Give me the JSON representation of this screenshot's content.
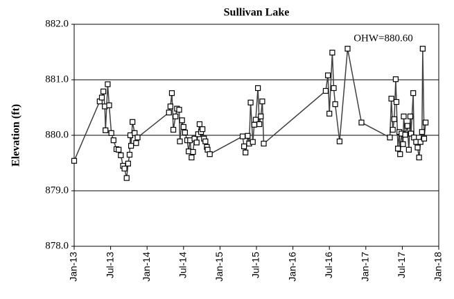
{
  "chart_data": {
    "type": "line",
    "title": "Sullivan Lake",
    "y_label": "Elevation (ft)",
    "annotation": "OHW=880.60",
    "color": "#404040",
    "grid": true,
    "marker": "square",
    "x": [
      2013.0,
      2013.35,
      2013.38,
      2013.4,
      2013.42,
      2013.43,
      2013.46,
      2013.48,
      2013.51,
      2013.54,
      2013.58,
      2013.61,
      2013.64,
      2013.67,
      2013.69,
      2013.72,
      2013.74,
      2013.76,
      2013.77,
      2013.78,
      2013.8,
      2013.83,
      2013.85,
      2013.87,
      2014.3,
      2014.32,
      2014.34,
      2014.36,
      2014.39,
      2014.41,
      2014.44,
      2014.45,
      2014.48,
      2014.5,
      2014.52,
      2014.55,
      2014.57,
      2014.59,
      2014.61,
      2014.63,
      2014.65,
      2014.68,
      2014.7,
      2014.72,
      2014.74,
      2014.76,
      2014.78,
      2014.8,
      2014.82,
      2014.83,
      2014.86,
      2015.31,
      2015.33,
      2015.35,
      2015.38,
      2015.4,
      2015.42,
      2015.45,
      2015.47,
      2015.49,
      2015.52,
      2015.54,
      2015.56,
      2015.58,
      2015.6,
      2016.45,
      2016.48,
      2016.5,
      2016.54,
      2016.56,
      2016.58,
      2016.64,
      2016.75,
      2016.94,
      2017.33,
      2017.35,
      2017.37,
      2017.39,
      2017.41,
      2017.42,
      2017.44,
      2017.46,
      2017.47,
      2017.49,
      2017.51,
      2017.52,
      2017.54,
      2017.57,
      2017.59,
      2017.61,
      2017.62,
      2017.65,
      2017.66,
      2017.69,
      2017.71,
      2017.73,
      2017.75,
      2017.77,
      2017.78,
      2017.8,
      2017.82
    ],
    "values": [
      879.54,
      880.61,
      880.68,
      880.79,
      880.52,
      880.09,
      880.92,
      880.54,
      880.04,
      879.91,
      879.75,
      879.74,
      879.64,
      879.45,
      879.4,
      879.23,
      879.49,
      879.65,
      880.0,
      879.81,
      880.24,
      880.04,
      879.86,
      879.96,
      880.41,
      880.52,
      880.76,
      880.1,
      880.34,
      880.48,
      880.46,
      879.89,
      880.27,
      880.15,
      880.05,
      879.91,
      879.71,
      879.91,
      879.6,
      879.7,
      879.94,
      879.87,
      880.02,
      880.2,
      880.06,
      880.11,
      879.94,
      879.89,
      879.79,
      879.74,
      879.66,
      879.98,
      879.8,
      879.69,
      879.99,
      879.85,
      880.59,
      879.88,
      880.19,
      880.28,
      880.85,
      880.2,
      880.34,
      880.61,
      879.85,
      880.8,
      881.08,
      880.39,
      881.49,
      880.85,
      880.56,
      879.89,
      881.56,
      880.23,
      879.96,
      880.66,
      880.1,
      880.29,
      881.01,
      880.6,
      879.76,
      880.06,
      879.66,
      880.03,
      879.84,
      880.34,
      880.01,
      880.17,
      879.74,
      880.34,
      880.03,
      880.76,
      879.96,
      879.88,
      879.78,
      879.6,
      879.88,
      880.06,
      881.56,
      879.94,
      880.23
    ],
    "xlim": [
      2013.0,
      2018.0
    ],
    "xticks": [
      {
        "value": 2013.0,
        "label": "Jan-13"
      },
      {
        "value": 2013.5,
        "label": "Jul-13"
      },
      {
        "value": 2014.0,
        "label": "Jan-14"
      },
      {
        "value": 2014.5,
        "label": "Jul-14"
      },
      {
        "value": 2015.0,
        "label": "Jan-15"
      },
      {
        "value": 2015.5,
        "label": "Jul-15"
      },
      {
        "value": 2016.0,
        "label": "Jan-16"
      },
      {
        "value": 2016.5,
        "label": "Jul-16"
      },
      {
        "value": 2017.0,
        "label": "Jan-17"
      },
      {
        "value": 2017.5,
        "label": "Jul-17"
      },
      {
        "value": 2018.0,
        "label": "Jan-18"
      }
    ],
    "ylim": [
      878.0,
      882.0
    ],
    "yticks": [
      {
        "value": 878.0,
        "label": "878.0"
      },
      {
        "value": 879.0,
        "label": "879.0"
      },
      {
        "value": 880.0,
        "label": "880.0"
      },
      {
        "value": 881.0,
        "label": "881.0"
      },
      {
        "value": 882.0,
        "label": "882.0"
      }
    ]
  }
}
